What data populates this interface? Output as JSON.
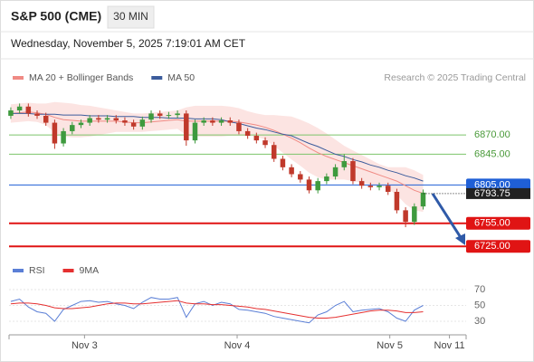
{
  "header": {
    "title": "S&P 500 (CME)",
    "timeframe": "30 MIN",
    "timestamp": "Wednesday, November 5, 2025 7:19:01 AM CET"
  },
  "chart_data": [
    {
      "type": "candlestick",
      "credit": "Research © 2025 Trading Central",
      "x": [
        0,
        1,
        2,
        3,
        4,
        5,
        6,
        7,
        8,
        9,
        10,
        11,
        12,
        13,
        14,
        15,
        16,
        17,
        18,
        19,
        20,
        21,
        22,
        23,
        24,
        25,
        26,
        27,
        28,
        29,
        30,
        31,
        32,
        33,
        34,
        35,
        36,
        37,
        38,
        39,
        40,
        41,
        42,
        43,
        44,
        45,
        46,
        47
      ],
      "open": [
        6895,
        6902,
        6907,
        6898,
        6895,
        6886,
        6859,
        6875,
        6883,
        6886,
        6892,
        6890,
        6892,
        6889,
        6886,
        6881,
        6890,
        6898,
        6895,
        6896,
        6898,
        6863,
        6886,
        6889,
        6886,
        6889,
        6886,
        6875,
        6869,
        6863,
        6857,
        6839,
        6828,
        6819,
        6812,
        6798,
        6810,
        6816,
        6828,
        6836,
        6810,
        6804,
        6802,
        6804,
        6796,
        6772,
        6757,
        6777
      ],
      "high": [
        6906,
        6911,
        6911,
        6902,
        6899,
        6890,
        6879,
        6887,
        6890,
        6896,
        6896,
        6896,
        6896,
        6893,
        6890,
        6894,
        6902,
        6902,
        6900,
        6902,
        6902,
        6890,
        6893,
        6893,
        6893,
        6893,
        6890,
        6879,
        6873,
        6867,
        6861,
        6843,
        6832,
        6823,
        6816,
        6814,
        6820,
        6832,
        6845,
        6840,
        6814,
        6808,
        6808,
        6808,
        6800,
        6776,
        6781,
        6799
      ],
      "low": [
        6891,
        6898,
        6894,
        6891,
        6882,
        6852,
        6855,
        6871,
        6879,
        6882,
        6886,
        6886,
        6885,
        6882,
        6877,
        6877,
        6886,
        6891,
        6891,
        6892,
        6856,
        6859,
        6882,
        6882,
        6882,
        6882,
        6871,
        6865,
        6859,
        6853,
        6835,
        6824,
        6815,
        6808,
        6794,
        6794,
        6806,
        6812,
        6824,
        6806,
        6800,
        6798,
        6798,
        6792,
        6768,
        6750,
        6753,
        6773
      ],
      "close": [
        6902,
        6907,
        6898,
        6895,
        6886,
        6859,
        6875,
        6883,
        6886,
        6892,
        6890,
        6892,
        6889,
        6886,
        6881,
        6890,
        6898,
        6895,
        6896,
        6898,
        6863,
        6886,
        6889,
        6886,
        6889,
        6886,
        6875,
        6869,
        6863,
        6857,
        6839,
        6828,
        6819,
        6812,
        6798,
        6810,
        6816,
        6828,
        6836,
        6810,
        6804,
        6802,
        6804,
        6796,
        6772,
        6757,
        6777,
        6795
      ],
      "up_color": "#3e9a3e",
      "down_color": "#c0392b",
      "series": [
        {
          "name": "MA 20 + Bollinger Bands",
          "color": "#f08a84",
          "band_color": "#fbd9d6",
          "values": [
            6898,
            6899,
            6900,
            6899,
            6897,
            6893,
            6890,
            6889,
            6888,
            6888,
            6888,
            6888,
            6888,
            6887,
            6886,
            6886,
            6887,
            6888,
            6889,
            6890,
            6888,
            6888,
            6888,
            6888,
            6888,
            6888,
            6887,
            6885,
            6883,
            6880,
            6876,
            6871,
            6866,
            6860,
            6853,
            6847,
            6842,
            6838,
            6834,
            6830,
            6826,
            6822,
            6818,
            6814,
            6810,
            6804,
            6798,
            6794
          ],
          "upper": [
            6910,
            6911,
            6912,
            6911,
            6911,
            6913,
            6912,
            6911,
            6909,
            6908,
            6906,
            6904,
            6902,
            6900,
            6898,
            6898,
            6899,
            6900,
            6901,
            6902,
            6906,
            6908,
            6908,
            6908,
            6908,
            6907,
            6905,
            6901,
            6898,
            6896,
            6896,
            6895,
            6894,
            6890,
            6885,
            6879,
            6872,
            6864,
            6856,
            6850,
            6844,
            6838,
            6832,
            6828,
            6828,
            6828,
            6824,
            6818
          ],
          "lower": [
            6886,
            6887,
            6888,
            6887,
            6883,
            6873,
            6868,
            6867,
            6867,
            6868,
            6870,
            6872,
            6874,
            6874,
            6874,
            6874,
            6875,
            6876,
            6877,
            6878,
            6870,
            6868,
            6868,
            6868,
            6868,
            6869,
            6869,
            6869,
            6868,
            6864,
            6856,
            6847,
            6838,
            6830,
            6821,
            6815,
            6812,
            6812,
            6812,
            6810,
            6808,
            6806,
            6804,
            6800,
            6792,
            6780,
            6772,
            6770
          ]
        },
        {
          "name": "MA 50",
          "color": "#3c5c9c",
          "values": [
            6898,
            6898,
            6898,
            6897,
            6897,
            6897,
            6896,
            6896,
            6896,
            6895,
            6895,
            6895,
            6894,
            6894,
            6894,
            6893,
            6893,
            6893,
            6892,
            6892,
            6892,
            6891,
            6891,
            6891,
            6890,
            6887,
            6885,
            6882,
            6879,
            6877,
            6874,
            6871,
            6869,
            6864,
            6859,
            6855,
            6850,
            6845,
            6842,
            6838,
            6835,
            6831,
            6828,
            6824,
            6821,
            6817,
            6814,
            6810
          ]
        }
      ],
      "levels": [
        {
          "value": 6870,
          "label": "6870.00",
          "color": "#7cc46a",
          "boxed": false,
          "width": 1
        },
        {
          "value": 6845,
          "label": "6845.00",
          "color": "#7cc46a",
          "boxed": false,
          "width": 1
        },
        {
          "value": 6805,
          "label": "6805.00",
          "color": "#1f5fd6",
          "boxed": true,
          "width": 1
        },
        {
          "value": 6755,
          "label": "6755.00",
          "color": "#e01414",
          "boxed": true,
          "width": 2
        },
        {
          "value": 6725,
          "label": "6725.00",
          "color": "#e01414",
          "boxed": true,
          "width": 2
        }
      ],
      "last_price": 6793.75,
      "ylim": [
        6710,
        6935
      ],
      "xlim": [
        -0.2,
        51.9
      ],
      "xticks": [
        {
          "value": 8.4,
          "label": "Nov 3"
        },
        {
          "value": 25.8,
          "label": "Nov 4"
        },
        {
          "value": 43.2,
          "label": "Nov 5"
        },
        {
          "value": 50,
          "label": "Nov 11"
        }
      ]
    },
    {
      "type": "line",
      "series": [
        {
          "name": "RSI",
          "color": "#5b7fd6",
          "values": [
            55,
            58,
            48,
            42,
            40,
            30,
            45,
            50,
            55,
            56,
            54,
            55,
            52,
            50,
            46,
            54,
            60,
            58,
            58,
            60,
            35,
            52,
            55,
            50,
            54,
            52,
            45,
            44,
            42,
            40,
            36,
            34,
            32,
            30,
            28,
            38,
            42,
            50,
            55,
            42,
            44,
            45,
            46,
            42,
            34,
            30,
            44,
            50
          ]
        },
        {
          "name": "9MA",
          "color": "#e53030",
          "values": [
            52,
            53,
            53,
            52,
            50,
            47,
            46,
            46,
            47,
            48,
            50,
            52,
            53,
            53,
            52,
            52,
            53,
            54,
            55,
            56,
            53,
            52,
            52,
            51,
            51,
            50,
            49,
            48,
            46,
            45,
            43,
            41,
            39,
            37,
            35,
            34,
            34,
            35,
            37,
            39,
            41,
            43,
            44,
            44,
            43,
            41,
            41,
            42
          ]
        }
      ],
      "ylim": [
        15,
        82
      ],
      "yticks": [
        30,
        50,
        70
      ]
    }
  ]
}
